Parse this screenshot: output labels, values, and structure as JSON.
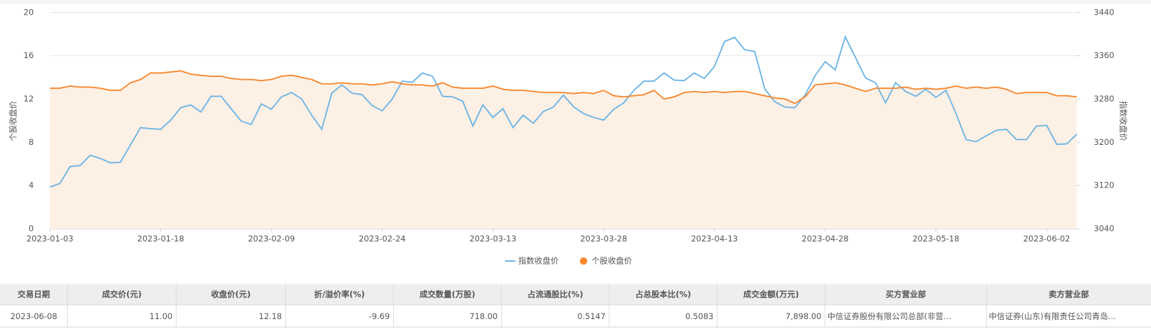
{
  "chart_data": {
    "type": "line",
    "categories": [
      "2023-01-03",
      null,
      null,
      null,
      null,
      null,
      null,
      null,
      null,
      null,
      null,
      "2023-01-18",
      null,
      null,
      null,
      null,
      null,
      null,
      null,
      null,
      null,
      null,
      "2023-02-09",
      null,
      null,
      null,
      null,
      null,
      null,
      null,
      null,
      null,
      null,
      "2023-02-24",
      null,
      null,
      null,
      null,
      null,
      null,
      null,
      null,
      null,
      null,
      "2023-03-13",
      null,
      null,
      null,
      null,
      null,
      null,
      null,
      null,
      null,
      null,
      "2023-03-28",
      null,
      null,
      null,
      null,
      null,
      null,
      null,
      null,
      null,
      null,
      "2023-04-13",
      null,
      null,
      null,
      null,
      null,
      null,
      null,
      null,
      null,
      null,
      "2023-04-28",
      null,
      null,
      null,
      null,
      null,
      null,
      null,
      null,
      null,
      null,
      "2023-05-18",
      null,
      null,
      null,
      null,
      null,
      null,
      null,
      null,
      null,
      null,
      "2023-06-02",
      null,
      null,
      null
    ],
    "series": [
      {
        "name": "指数收盘价",
        "color": "#6db5e5",
        "axis": "y2",
        "values": [
          3117,
          3124,
          3155,
          3157,
          3176,
          3170,
          3162,
          3163,
          3195,
          3227,
          3225,
          3224,
          3241,
          3264,
          3269,
          3256,
          3285,
          3285,
          3262,
          3239,
          3233,
          3271,
          3261,
          3284,
          3292,
          3280,
          3250,
          3224,
          3291,
          3306,
          3291,
          3288,
          3268,
          3258,
          3280,
          3313,
          3311,
          3328,
          3322,
          3285,
          3284,
          3276,
          3230,
          3269,
          3246,
          3262,
          3227,
          3250,
          3235,
          3257,
          3265,
          3287,
          3266,
          3253,
          3246,
          3241,
          3261,
          3273,
          3296,
          3313,
          3313,
          3328,
          3315,
          3314,
          3328,
          3318,
          3340,
          3386,
          3394,
          3371,
          3368,
          3299,
          3275,
          3265,
          3264,
          3287,
          3323,
          3349,
          3334,
          3395,
          3357,
          3319,
          3310,
          3273,
          3310,
          3294,
          3285,
          3298,
          3283,
          3296,
          3253,
          3205,
          3201,
          3212,
          3222,
          3224,
          3205,
          3205,
          3230,
          3231,
          3196,
          3197,
          3215
        ]
      },
      {
        "name": "个股收盘价",
        "color": "#f7882f",
        "area_color": "#fdf0e5",
        "values": [
          13.0,
          13.0,
          13.2,
          13.1,
          13.1,
          13.0,
          12.8,
          12.8,
          13.5,
          13.8,
          14.4,
          14.4,
          14.5,
          14.6,
          14.3,
          14.2,
          14.1,
          14.1,
          13.9,
          13.8,
          13.8,
          13.7,
          13.8,
          14.1,
          14.2,
          14.0,
          13.8,
          13.4,
          13.4,
          13.5,
          13.4,
          13.4,
          13.3,
          13.4,
          13.6,
          13.4,
          13.3,
          13.3,
          13.2,
          13.5,
          13.1,
          13.0,
          13.0,
          13.0,
          13.2,
          12.9,
          12.8,
          12.8,
          12.7,
          12.6,
          12.6,
          12.6,
          12.5,
          12.6,
          12.5,
          12.8,
          12.3,
          12.2,
          12.3,
          12.4,
          12.8,
          12.0,
          12.2,
          12.6,
          12.7,
          12.6,
          12.7,
          12.6,
          12.7,
          12.7,
          12.5,
          12.3,
          12.1,
          12.0,
          11.6,
          12.2,
          13.3,
          13.4,
          13.5,
          13.3,
          13.0,
          12.7,
          13.0,
          13.0,
          13.0,
          13.1,
          12.9,
          13.0,
          12.9,
          13.0,
          13.2,
          13.0,
          13.1,
          13.0,
          13.1,
          12.9,
          12.5,
          12.6,
          12.6,
          12.6,
          12.3,
          12.3,
          12.2
        ]
      }
    ],
    "ylabel": "个股收盘价",
    "y2label": "指数收盘价",
    "ylim": [
      0,
      20
    ],
    "yticks": [
      0,
      4,
      8,
      12,
      16,
      20
    ],
    "y2lim": [
      3040,
      3440
    ],
    "y2ticks": [
      3040,
      3120,
      3200,
      3280,
      3360,
      3440
    ],
    "grid": true,
    "legend": "bottom"
  },
  "table": {
    "headers": [
      "交易日期",
      "成交价(元)",
      "收盘价(元)",
      "折/溢价率(%)",
      "成交数量(万股)",
      "占流通股比(%)",
      "占总股本比(%)",
      "成交金额(万元)",
      "买方营业部",
      "卖方营业部"
    ],
    "rows": [
      [
        "2023-06-08",
        "11.00",
        "12.18",
        "-9.69",
        "718.00",
        "0.5147",
        "0.5083",
        "7,898.00",
        "中信证券股份有限公司总部(非营…",
        "中信证券(山东)有限责任公司青岛…"
      ]
    ]
  }
}
